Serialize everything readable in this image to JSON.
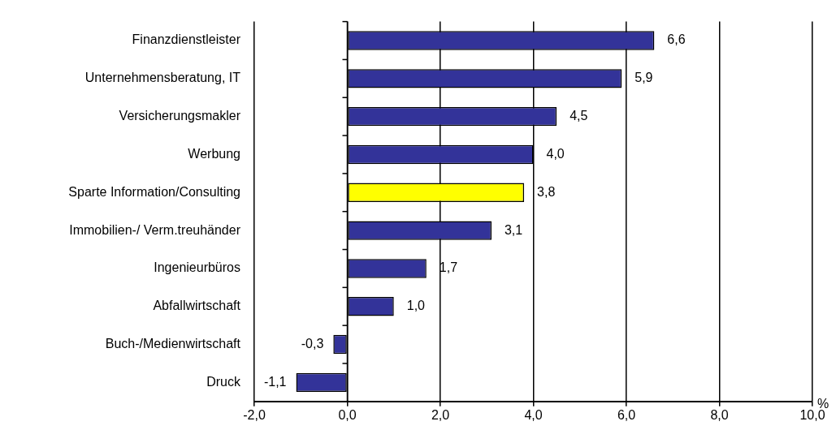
{
  "chart_data": {
    "type": "bar",
    "orientation": "horizontal",
    "categories": [
      "Finanzdienstleister",
      "Unternehmensberatung, IT",
      "Versicherungsmakler",
      "Werbung",
      "Sparte Information/Consulting",
      "Immobilien-/ Verm.treuhänder",
      "Ingenieurbüros",
      "Abfallwirtschaft",
      "Buch-/Medienwirtschaft",
      "Druck"
    ],
    "values": [
      6.6,
      5.9,
      4.5,
      4.0,
      3.8,
      3.1,
      1.7,
      1.0,
      -0.3,
      -1.1
    ],
    "colors": [
      "#333399",
      "#333399",
      "#333399",
      "#333399",
      "#ffff00",
      "#333399",
      "#333399",
      "#333399",
      "#333399",
      "#333399"
    ],
    "value_labels": [
      "6,6",
      "5,9",
      "4,5",
      "4,0",
      "3,8",
      "3,1",
      "1,7",
      "1,0",
      "-0,3",
      "-1,1"
    ],
    "xlabel": "%",
    "xlim": [
      -2,
      10
    ],
    "xticks": [
      {
        "value": -2,
        "label": "-2,0"
      },
      {
        "value": 0,
        "label": "0,0"
      },
      {
        "value": 2,
        "label": "2,0"
      },
      {
        "value": 4,
        "label": "4,0"
      },
      {
        "value": 6,
        "label": "6,0"
      },
      {
        "value": 8,
        "label": "8,0"
      },
      {
        "value": 10,
        "label": "10,0"
      }
    ],
    "grid": "x"
  }
}
